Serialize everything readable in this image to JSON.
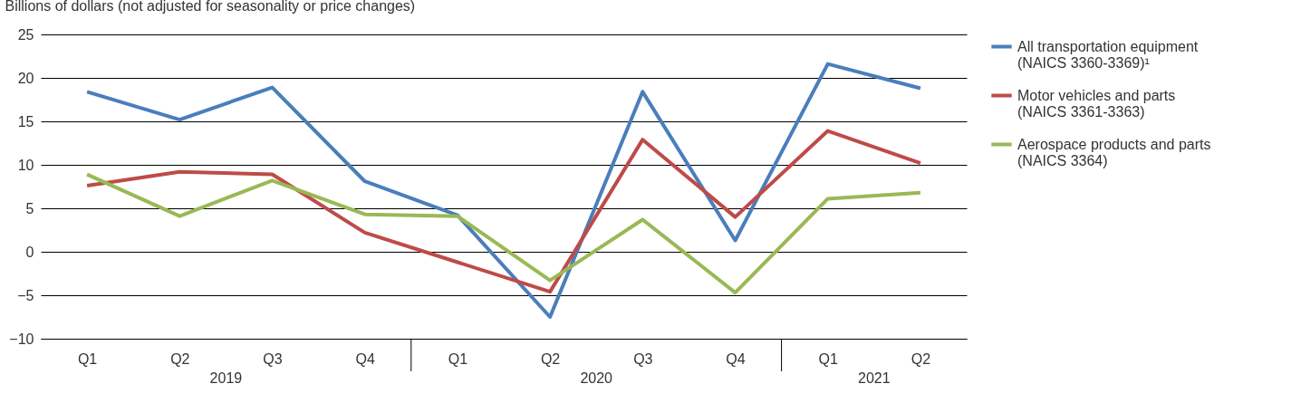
{
  "chart_data": {
    "type": "line",
    "ylabel": "Billions of dollars (not adjusted for seasonality or price changes)",
    "categories": [
      "Q1",
      "Q2",
      "Q3",
      "Q4",
      "Q1",
      "Q2",
      "Q3",
      "Q4",
      "Q1",
      "Q2"
    ],
    "annotations": [
      "2019",
      "2020",
      "2021"
    ],
    "series": [
      {
        "name": "All transportation equipment (NAICS 3360-3369)¹",
        "color": "#4a7ebb",
        "values": [
          18.4,
          15.2,
          18.9,
          8.1,
          4.2,
          -7.5,
          18.4,
          1.3,
          21.6,
          18.8
        ]
      },
      {
        "name": "Motor vehicles and parts (NAICS 3361-3363)",
        "color": "#be4b48",
        "values": [
          7.6,
          9.2,
          8.9,
          2.2,
          -1.2,
          -4.6,
          12.9,
          4.0,
          13.9,
          10.2
        ]
      },
      {
        "name": "Aerospace products and parts (NAICS 3364)",
        "color": "#98b954",
        "values": [
          8.9,
          4.1,
          8.2,
          4.3,
          4.1,
          -3.3,
          3.7,
          -4.7,
          6.1,
          6.8
        ]
      }
    ],
    "ylim": [
      -10,
      25
    ],
    "yticks": [
      -10,
      -5,
      0,
      5,
      10,
      15,
      20,
      25
    ],
    "grid": "y",
    "legend": "right",
    "marker": "none",
    "line_style": "solid"
  }
}
